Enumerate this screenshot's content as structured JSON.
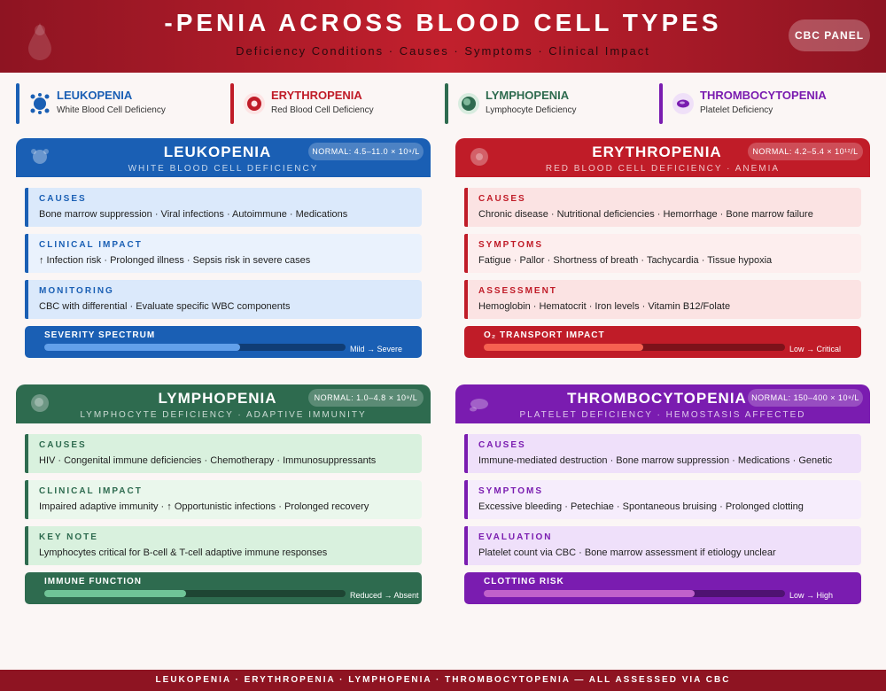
{
  "header": {
    "title": "-PENIA ACROSS BLOOD CELL TYPES",
    "subtitle": "Deficiency Conditions · Causes · Symptoms · Clinical Impact",
    "badge": "CBC PANEL"
  },
  "legend": [
    {
      "name": "LEUKOPENIA",
      "desc": "White Blood Cell Deficiency",
      "color": "#1a5fb4",
      "icon": "wbc-icon"
    },
    {
      "name": "ERYTHROPENIA",
      "desc": "Red Blood Cell Deficiency",
      "color": "#c01c28",
      "icon": "rbc-icon"
    },
    {
      "name": "LYMPHOPENIA",
      "desc": "Lymphocyte Deficiency",
      "color": "#2e6b4f",
      "icon": "lymphocyte-icon"
    },
    {
      "name": "THROMBOCYTOPENIA",
      "desc": "Platelet Deficiency",
      "color": "#7a1cb0",
      "icon": "platelet-icon"
    }
  ],
  "panels": {
    "leuko": {
      "title": "LEUKOPENIA",
      "subtitle": "WHITE BLOOD CELL DEFICIENCY",
      "normal": "NORMAL: 4.5–11.0 × 10⁹/L",
      "cards": [
        {
          "label": "CAUSES",
          "text": "Bone marrow suppression · Viral infections · Autoimmune · Medications"
        },
        {
          "label": "CLINICAL IMPACT",
          "text": "↑ Infection risk · Prolonged illness · Sepsis risk in severe cases"
        },
        {
          "label": "MONITORING",
          "text": "CBC with differential · Evaluate specific WBC components"
        }
      ],
      "meter": {
        "label": "SEVERITY SPECTRUM",
        "scale": "Mild → Severe",
        "level": 0.65
      }
    },
    "erythro": {
      "title": "ERYTHROPENIA",
      "subtitle": "RED BLOOD CELL DEFICIENCY · ANEMIA",
      "normal": "NORMAL: 4.2–5.4 × 10¹²/L",
      "cards": [
        {
          "label": "CAUSES",
          "text": "Chronic disease · Nutritional deficiencies · Hemorrhage · Bone marrow failure"
        },
        {
          "label": "SYMPTOMS",
          "text": "Fatigue · Pallor · Shortness of breath · Tachycardia · Tissue hypoxia"
        },
        {
          "label": "ASSESSMENT",
          "text": "Hemoglobin · Hematocrit · Iron levels · Vitamin B12/Folate"
        }
      ],
      "meter": {
        "label": "O₂ TRANSPORT IMPACT",
        "scale": "Low → Critical",
        "level": 0.53
      }
    },
    "lympho": {
      "title": "LYMPHOPENIA",
      "subtitle": "LYMPHOCYTE DEFICIENCY · ADAPTIVE IMMUNITY",
      "normal": "NORMAL: 1.0–4.8 × 10⁹/L",
      "cards": [
        {
          "label": "CAUSES",
          "text": "HIV · Congenital immune deficiencies · Chemotherapy · Immunosuppressants"
        },
        {
          "label": "CLINICAL IMPACT",
          "text": "Impaired adaptive immunity · ↑ Opportunistic infections · Prolonged recovery"
        },
        {
          "label": "KEY NOTE",
          "text": "Lymphocytes critical for B-cell & T-cell adaptive immune responses"
        }
      ],
      "meter": {
        "label": "IMMUNE FUNCTION",
        "scale": "Reduced → Absent",
        "level": 0.47
      }
    },
    "thrombo": {
      "title": "THROMBOCYTOPENIA",
      "subtitle": "PLATELET DEFICIENCY · HEMOSTASIS AFFECTED",
      "normal": "NORMAL: 150–400 × 10⁹/L",
      "cards": [
        {
          "label": "CAUSES",
          "text": "Immune-mediated destruction · Bone marrow suppression · Medications · Genetic"
        },
        {
          "label": "SYMPTOMS",
          "text": "Excessive bleeding · Petechiae · Spontaneous bruising · Prolonged clotting"
        },
        {
          "label": "EVALUATION",
          "text": "Platelet count via CBC · Bone marrow assessment if etiology unclear"
        }
      ],
      "meter": {
        "label": "CLOTTING RISK",
        "scale": "Low → High",
        "level": 0.7
      }
    }
  },
  "footer": "LEUKOPENIA · ERYTHROPENIA · LYMPHOPENIA · THROMBOCYTOPENIA — ALL ASSESSED VIA CBC"
}
